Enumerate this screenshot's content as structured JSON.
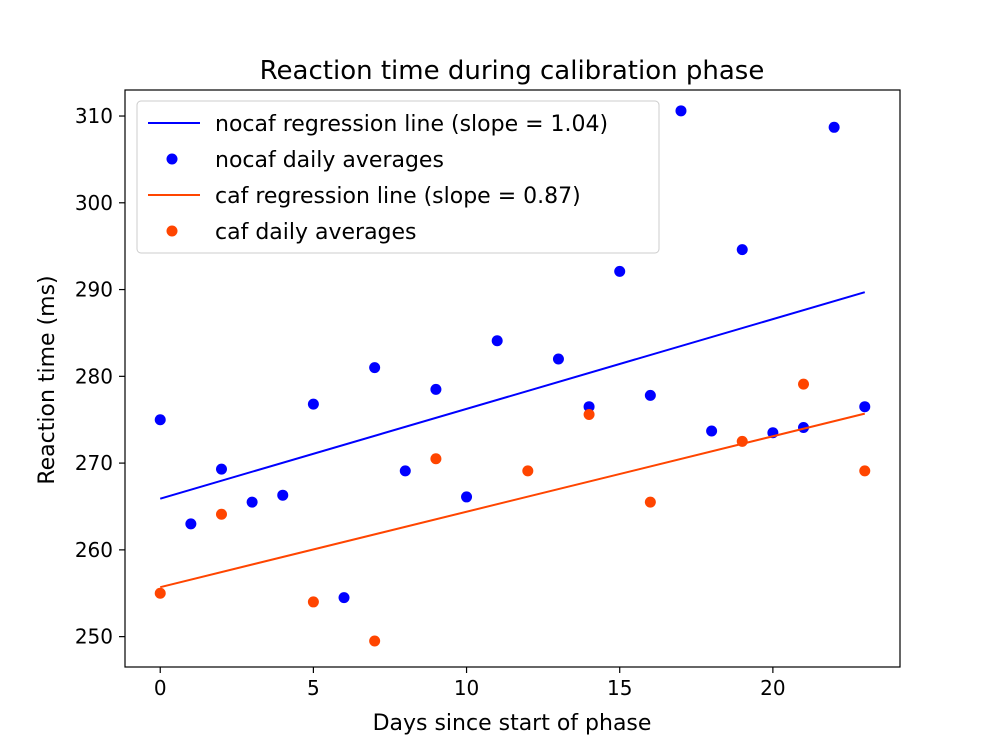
{
  "chart_data": {
    "type": "scatter",
    "title": "Reaction time during calibration phase",
    "xlabel": "Days since start of phase",
    "ylabel": "Reaction time (ms)",
    "xlim": [
      -1.15,
      24.15
    ],
    "ylim": [
      246.5,
      313.0
    ],
    "xticks": [
      0,
      5,
      10,
      15,
      20
    ],
    "yticks": [
      250,
      260,
      270,
      280,
      290,
      300,
      310
    ],
    "grid": false,
    "legend_position": "upper-left",
    "series": [
      {
        "name": "nocaf regression line (slope = 1.04)",
        "kind": "line",
        "color": "#0000ff",
        "x": [
          0,
          23
        ],
        "y": [
          265.9,
          289.7
        ]
      },
      {
        "name": "nocaf daily averages",
        "kind": "scatter",
        "color": "#0000ff",
        "x": [
          0,
          1,
          2,
          3,
          4,
          5,
          6,
          7,
          8,
          9,
          10,
          11,
          13,
          14,
          15,
          16,
          17,
          18,
          19,
          20,
          21,
          22,
          23
        ],
        "y": [
          275.0,
          263.0,
          269.3,
          265.5,
          266.3,
          276.8,
          254.5,
          281.0,
          269.1,
          278.5,
          266.1,
          284.1,
          282.0,
          276.5,
          292.1,
          277.8,
          310.6,
          273.7,
          294.6,
          273.5,
          274.1,
          308.7,
          276.5
        ]
      },
      {
        "name": "caf regression line (slope = 0.87)",
        "kind": "line",
        "color": "#ff4500",
        "x": [
          0,
          23
        ],
        "y": [
          255.7,
          275.7
        ]
      },
      {
        "name": "caf daily averages",
        "kind": "scatter",
        "color": "#ff4500",
        "x": [
          0,
          2,
          5,
          7,
          9,
          12,
          14,
          16,
          19,
          21,
          23
        ],
        "y": [
          255.0,
          264.1,
          254.0,
          249.5,
          270.5,
          269.1,
          275.6,
          265.5,
          272.5,
          279.1,
          269.1
        ]
      }
    ]
  }
}
